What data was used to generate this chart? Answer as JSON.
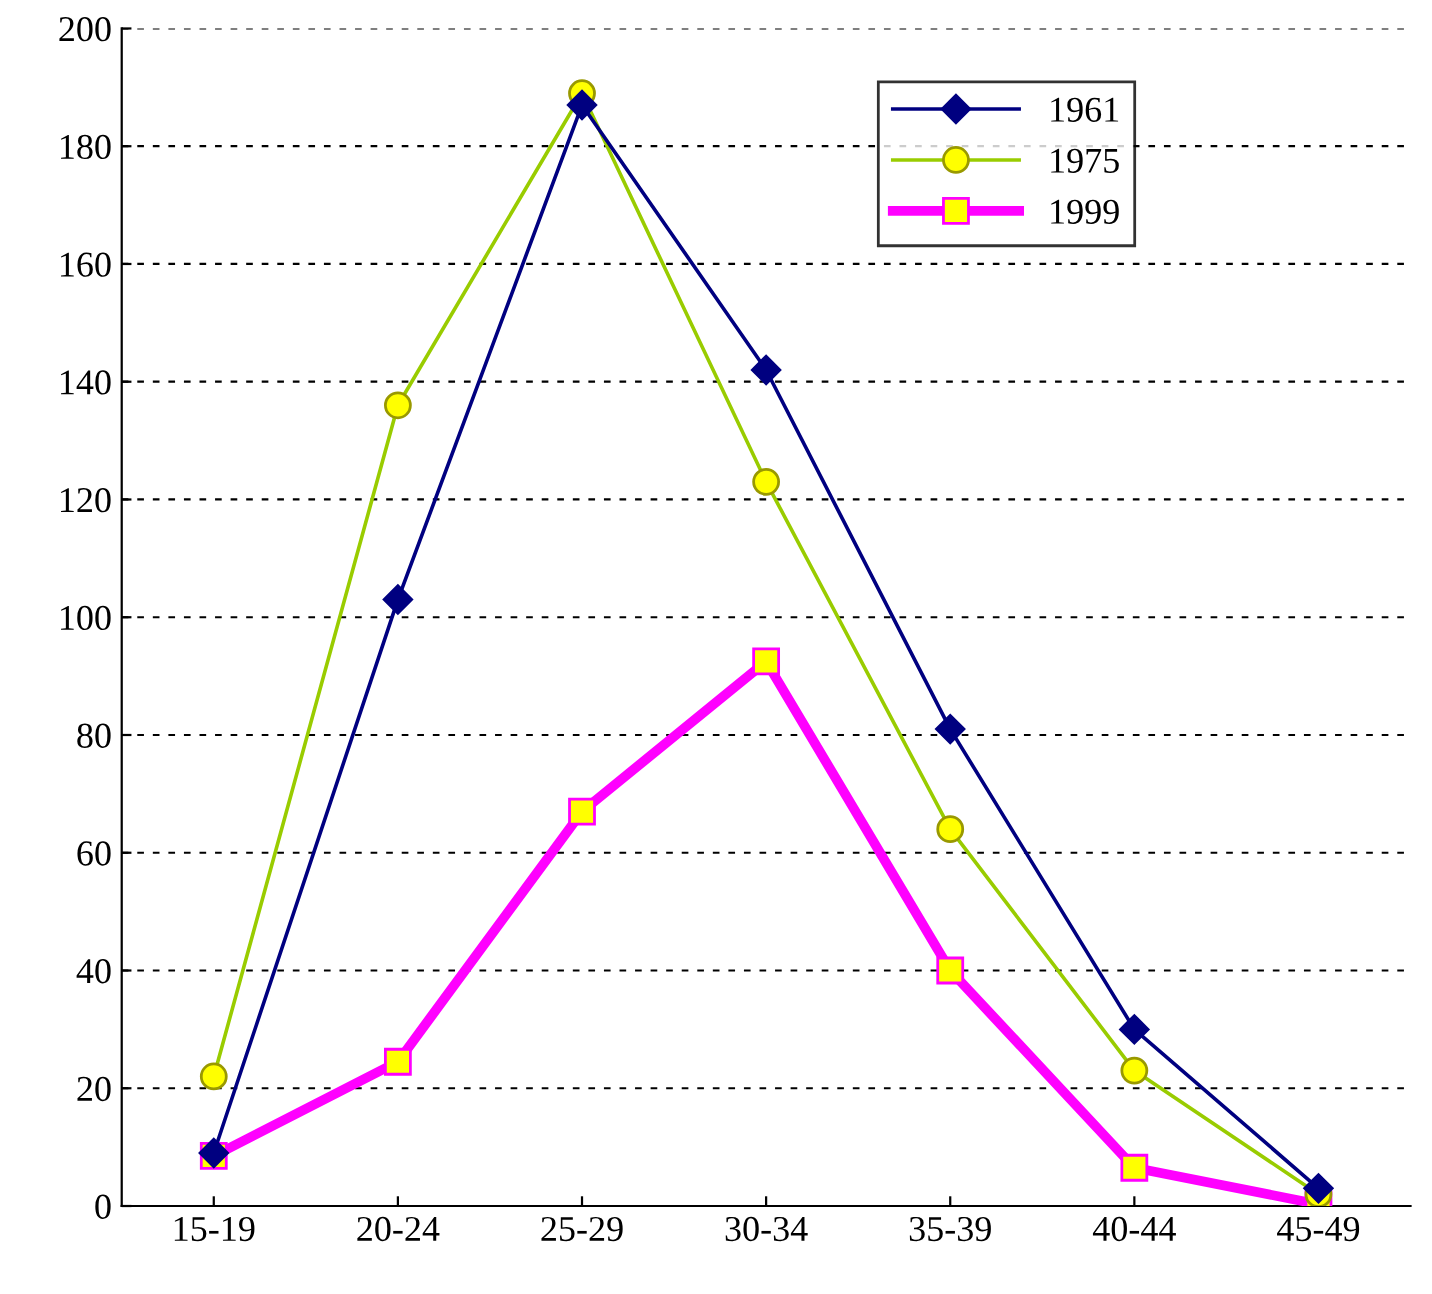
{
  "chart_data": {
    "type": "line",
    "categories": [
      "15-19",
      "20-24",
      "25-29",
      "30-34",
      "35-39",
      "40-44",
      "45-49"
    ],
    "series": [
      {
        "name": "1961",
        "color": "#000080",
        "marker": "diamond",
        "values": [
          9,
          103,
          187,
          142,
          81,
          30,
          3
        ]
      },
      {
        "name": "1975",
        "color": "#99cc00",
        "marker": "circle",
        "values": [
          22,
          136,
          189,
          123,
          64,
          23,
          2
        ]
      },
      {
        "name": "1999",
        "color": "#ff00ff",
        "marker": "square",
        "values": [
          8.5,
          24.5,
          67,
          92.5,
          40,
          6.5,
          0.3
        ]
      }
    ],
    "ylim": [
      0,
      200
    ],
    "yticks": [
      0,
      20,
      40,
      60,
      80,
      100,
      120,
      140,
      160,
      180,
      200
    ],
    "grid": "y",
    "legend": "top right",
    "line_style": "solid"
  }
}
